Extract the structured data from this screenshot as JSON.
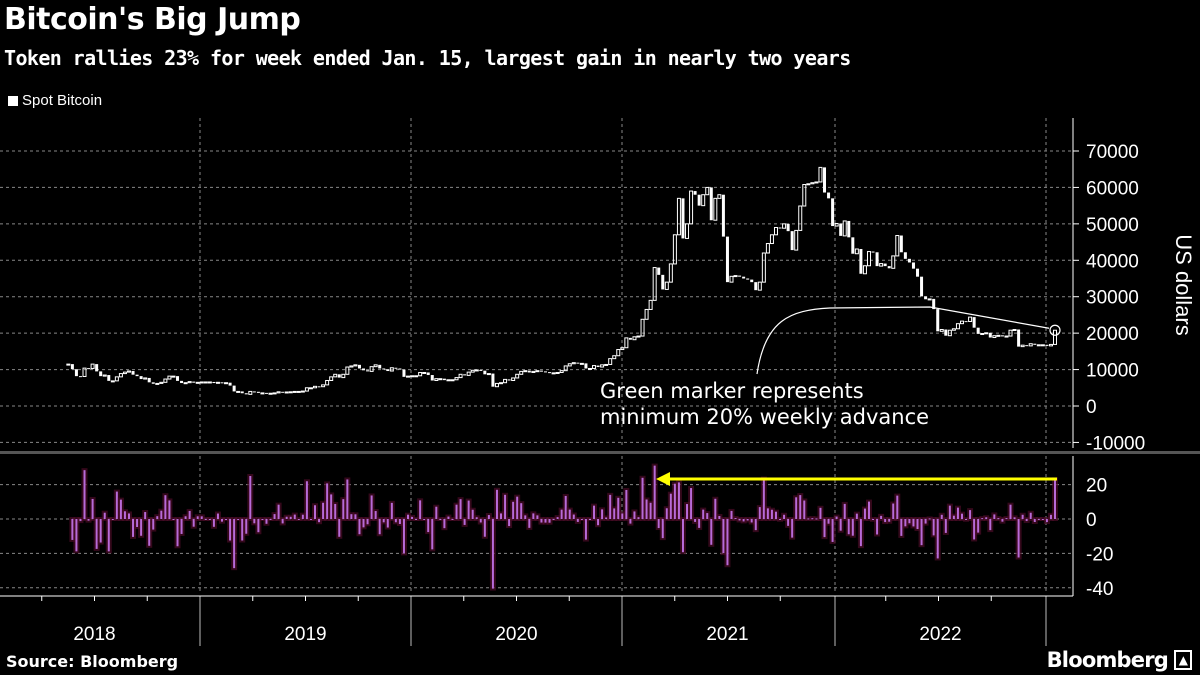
{
  "header": {
    "title": "Bitcoin's Big Jump",
    "subtitle": "Token rallies 23% for week ended Jan. 15, largest gain in nearly two years"
  },
  "legend": {
    "label": "Spot Bitcoin",
    "color": "#ffffff"
  },
  "footer": {
    "source": "Source: Bloomberg",
    "logo": "Bloomberg"
  },
  "colors": {
    "background": "#000000",
    "candle": "#ffffff",
    "bar": "#b86ad8",
    "bar_glow": "#4a0c26",
    "arrow": "#ffff00",
    "separator": "#555555"
  },
  "chart_data": [
    {
      "type": "candlestick",
      "series": [
        {
          "name": "Spot Bitcoin"
        }
      ],
      "frequency": "weekly",
      "last_week_ended": "Jan. 15, 2023",
      "ylabel": "US dollars",
      "ylim": [
        -13000,
        78000
      ],
      "yticks": [
        70000,
        60000,
        50000,
        40000,
        30000,
        20000,
        10000,
        0,
        -10000
      ],
      "ytick_labels": [
        "70000",
        "60000",
        "50000",
        "40000",
        "30000",
        "20000",
        "10000",
        "0",
        "-10000"
      ],
      "grid": true,
      "annotation": "Green marker represents\nminimum 20% weekly advance",
      "annotation_lines": [
        "Green marker represents",
        "minimum 20% weekly advance"
      ],
      "closes": [
        11500,
        10100,
        8200,
        8100,
        10400,
        10300,
        11500,
        9500,
        8200,
        8500,
        6900,
        6900,
        8000,
        8900,
        9300,
        9600,
        8600,
        8200,
        7400,
        7700,
        6500,
        6100,
        6200,
        6500,
        7400,
        8200,
        8200,
        6900,
        6300,
        6400,
        6700,
        6400,
        6500,
        6600,
        6600,
        6600,
        6300,
        6500,
        6400,
        6400,
        5600,
        4000,
        4000,
        3500,
        3200,
        4000,
        3900,
        3600,
        3600,
        3500,
        3500,
        3600,
        3900,
        3800,
        3850,
        3900,
        4000,
        4000,
        4100,
        5000,
        5000,
        5400,
        5300,
        5800,
        7000,
        8000,
        8700,
        7800,
        8700,
        10700,
        11000,
        11300,
        10300,
        9800,
        9500,
        10800,
        11300,
        10300,
        10100,
        9600,
        10500,
        10300,
        10000,
        8000,
        8200,
        8300,
        8300,
        9200,
        9200,
        8500,
        7000,
        7500,
        7500,
        7100,
        7200,
        7200,
        7800,
        8700,
        8400,
        9300,
        9800,
        9900,
        9700,
        8700,
        8900,
        5300,
        6200,
        6400,
        7300,
        7000,
        7700,
        8700,
        9500,
        9700,
        9200,
        9500,
        9700,
        9500,
        9300,
        9100,
        9100,
        9200,
        9700,
        11000,
        11600,
        11900,
        11700,
        11700,
        10300,
        10300,
        11100,
        10700,
        11300,
        11400,
        13000,
        13800,
        15500,
        16000,
        18700,
        18200,
        19000,
        19200,
        23800,
        26500,
        29000,
        38000,
        36000,
        32000,
        34000,
        39000,
        47000,
        57000,
        46000,
        50000,
        59000,
        58000,
        55000,
        58000,
        60000,
        51000,
        57000,
        58000,
        46500,
        34000,
        35600,
        35800,
        35500,
        35000,
        34700,
        34000,
        31800,
        34000,
        42000,
        44600,
        47000,
        49000,
        48800,
        50000,
        48000,
        42800,
        48200,
        54900,
        60800,
        61000,
        61300,
        61500,
        65500,
        58600,
        57000,
        49400,
        50100,
        46700,
        50800,
        46300,
        41800,
        43100,
        36300,
        38500,
        42400,
        42200,
        38400,
        39100,
        38400,
        37800,
        41200,
        46800,
        42200,
        40400,
        39400,
        37700,
        35500,
        30100,
        29300,
        29400,
        26600,
        20500,
        21000,
        19300,
        20800,
        21200,
        22600,
        23300,
        23200,
        24400,
        21500,
        19800,
        19900,
        20100,
        18800,
        19300,
        19400,
        19100,
        19200,
        20800,
        21000,
        16300,
        16700,
        16500,
        17100,
        16800,
        16800,
        16800,
        16500,
        16900,
        20800
      ]
    },
    {
      "type": "bar",
      "description_source": "weekly percent change of Spot Bitcoin",
      "ylim": [
        -47,
        37
      ],
      "yticks": [
        20,
        0,
        -20,
        -40
      ],
      "ytick_labels": [
        "20",
        "0",
        "-20",
        "-40"
      ],
      "highlight": {
        "value": 23,
        "note": "arrow from latest week back to prior comparable gain"
      }
    }
  ],
  "xaxis": {
    "labels": [
      "2018",
      "2019",
      "2020",
      "2021",
      "2022"
    ]
  }
}
